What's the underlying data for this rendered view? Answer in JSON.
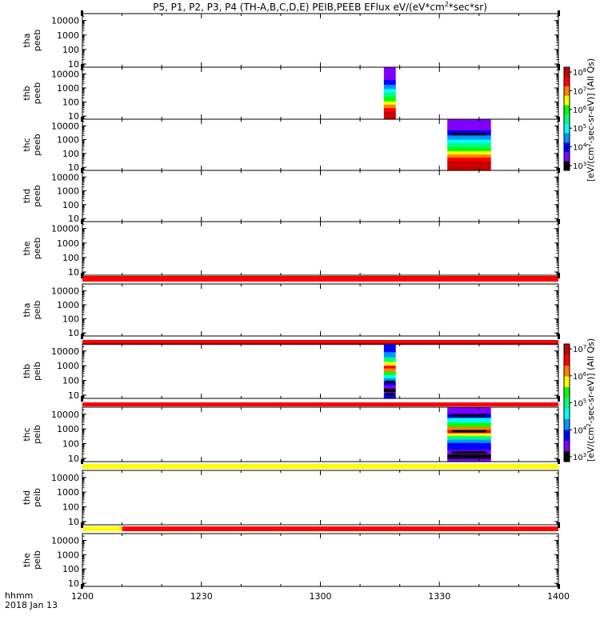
{
  "chart_data": {
    "type": "heatmap",
    "title": "P5, P1, P2, P3, P4 (TH-A,B,C,D,E) PEIB,PEEB EFlux eV/(eV*cm²*sec*sr)",
    "title_parts": {
      "main": "P5, P1, P2, P3, P4 (TH-A,B,C,D,E) PEIB,PEEB EFlux eV/(eV*cm",
      "sup": "2",
      "tail": "*sec*sr)"
    },
    "x_axis": {
      "units": "hhmm",
      "date": "2018 Jan 13",
      "range_hhmm": [
        "1200",
        "1400"
      ],
      "ticks": [
        "1200",
        "1230",
        "1300",
        "1330",
        "1400"
      ]
    },
    "y_axis": {
      "scale": "log",
      "range_eV": [
        6,
        30000
      ],
      "ticks": [
        "10",
        "100",
        "1000",
        "10000"
      ]
    },
    "panels": [
      {
        "probe": "tha",
        "product": "peeb",
        "label": [
          "tha",
          "peeb"
        ],
        "flag_bar": null,
        "blocks": []
      },
      {
        "probe": "thb",
        "product": "peeb",
        "label": [
          "thb",
          "peeb"
        ],
        "flag_bar": null,
        "blocks": [
          {
            "time_start": "1316",
            "time_end": "1319",
            "profile": "thb_peeb"
          }
        ]
      },
      {
        "probe": "thc",
        "product": "peeb",
        "label": [
          "thc",
          "peeb"
        ],
        "flag_bar": null,
        "blocks": [
          {
            "time_start": "1332",
            "time_end": "1343",
            "profile": "thc_peeb"
          }
        ]
      },
      {
        "probe": "thd",
        "product": "peeb",
        "label": [
          "thd",
          "peeb"
        ],
        "flag_bar": null,
        "blocks": []
      },
      {
        "probe": "the",
        "product": "peeb",
        "label": [
          "the",
          "peeb"
        ],
        "flag_bar": [
          {
            "time_start": "1200",
            "time_end": "1400",
            "color": "#ff0000"
          }
        ],
        "blocks": []
      },
      {
        "probe": "tha",
        "product": "peib",
        "label": [
          "tha",
          "peib"
        ],
        "flag_bar": [
          {
            "time_start": "1200",
            "time_end": "1400",
            "color": "#ff0000"
          }
        ],
        "blocks": []
      },
      {
        "probe": "thb",
        "product": "peib",
        "label": [
          "thb",
          "peib"
        ],
        "flag_bar": [
          {
            "time_start": "1200",
            "time_end": "1400",
            "color": "#ff0000"
          }
        ],
        "blocks": [
          {
            "time_start": "1316",
            "time_end": "1319",
            "profile": "thb_peib"
          }
        ]
      },
      {
        "probe": "thc",
        "product": "peib",
        "label": [
          "thc",
          "peib"
        ],
        "flag_bar": [
          {
            "time_start": "1200",
            "time_end": "1400",
            "color": "#ffff00"
          }
        ],
        "blocks": [
          {
            "time_start": "1332",
            "time_end": "1343",
            "profile": "thc_peib"
          }
        ]
      },
      {
        "probe": "thd",
        "product": "peib",
        "label": [
          "thd",
          "peib"
        ],
        "flag_bar": [
          {
            "time_start": "1200",
            "time_end": "1210",
            "color": "#ffff00"
          },
          {
            "time_start": "1210",
            "time_end": "1400",
            "color": "#ff0000"
          }
        ],
        "blocks": []
      },
      {
        "probe": "the",
        "product": "peib",
        "label": [
          "the",
          "peib"
        ],
        "flag_bar": null,
        "blocks": []
      }
    ],
    "colorbars": [
      {
        "name": "electron",
        "label": "[eV/(cm²-sec-sr-eV)]  (All Qs)",
        "label_parts": {
          "main": "[eV/(cm",
          "sup": "2",
          "tail": "-sec-sr-eV)]  (All Qs)"
        },
        "ticks": [
          {
            "base": "10",
            "exp": "8"
          },
          {
            "base": "10",
            "exp": "7"
          },
          {
            "base": "10",
            "exp": "6"
          },
          {
            "base": "10",
            "exp": "5"
          },
          {
            "base": "10",
            "exp": "4"
          },
          {
            "base": "10",
            "exp": "3"
          }
        ]
      },
      {
        "name": "ion",
        "label": "[eV/(cm²-sec-sr-eV)]  (All Qs)",
        "label_parts": {
          "main": "[eV/(cm",
          "sup": "2",
          "tail": "-sec-sr-eV)]  (All Qs)"
        },
        "ticks": [
          {
            "base": "10",
            "exp": "7"
          },
          {
            "base": "10",
            "exp": "6"
          },
          {
            "base": "10",
            "exp": "5"
          },
          {
            "base": "10",
            "exp": "4"
          },
          {
            "base": "10",
            "exp": "3"
          }
        ]
      }
    ],
    "colors": {
      "palette": [
        "#000000",
        "#7f00ff",
        "#0000ff",
        "#0096ff",
        "#00ffff",
        "#00ff80",
        "#00ff00",
        "#ffff00",
        "#ff8000",
        "#ff0000",
        "#c80000"
      ]
    }
  }
}
